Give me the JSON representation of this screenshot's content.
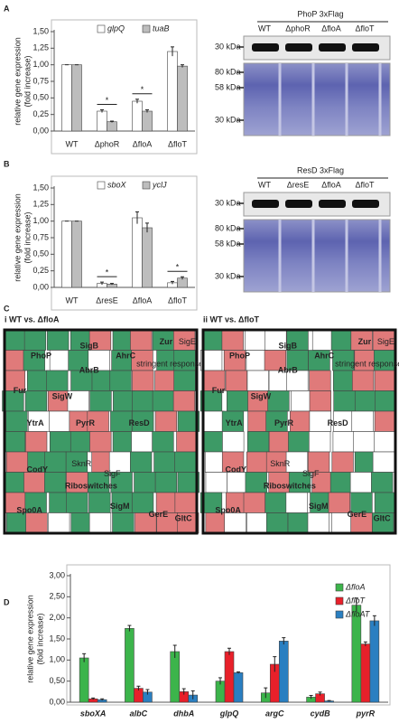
{
  "panel_labels": [
    "A",
    "B",
    "C",
    "D"
  ],
  "chart_data": [
    {
      "type": "bar",
      "y_label": [
        "relative gene expression",
        "(fold increase)"
      ],
      "categories": [
        "WT",
        "ΔphoR",
        "ΔfloA",
        "ΔfloT"
      ],
      "series": [
        {
          "name": "glpQ",
          "color": "#ffffff",
          "values": [
            1,
            0.3,
            0.45,
            1.2
          ],
          "errors": [
            0,
            0.02,
            0.03,
            0.07
          ]
        },
        {
          "name": "tuaB",
          "color": "#bdbdbd",
          "values": [
            1,
            0.14,
            0.3,
            0.98
          ],
          "errors": [
            0,
            0.01,
            0.02,
            0.02
          ]
        }
      ],
      "significance": [
        null,
        "*",
        "*",
        null
      ],
      "ylim": [
        0,
        1.5
      ],
      "yticks": [
        {
          "value": 0,
          "label": "0,00"
        },
        {
          "value": 0.25,
          "label": "0,25"
        },
        {
          "value": 0.5,
          "label": "0,50"
        },
        {
          "value": 0.75,
          "label": "0,75"
        },
        {
          "value": 1,
          "label": "1,00"
        },
        {
          "value": 1.25,
          "label": "1,25"
        },
        {
          "value": 1.5,
          "label": "1,50"
        }
      ]
    },
    {
      "type": "bar",
      "y_label": [
        "relative gene expression",
        "(fold increase)"
      ],
      "categories": [
        "WT",
        "ΔresE",
        "ΔfloA",
        "ΔfloT"
      ],
      "series": [
        {
          "name": "sboX",
          "color": "#ffffff",
          "values": [
            1,
            0.06,
            1.05,
            0.07
          ],
          "errors": [
            0,
            0.02,
            0.09,
            0.02
          ]
        },
        {
          "name": "yclJ",
          "color": "#bdbdbd",
          "values": [
            1,
            0.05,
            0.9,
            0.14
          ],
          "errors": [
            0,
            0.01,
            0.07,
            0.02
          ]
        }
      ],
      "significance": [
        null,
        "*",
        null,
        "*"
      ],
      "ylim": [
        0,
        1.5
      ],
      "yticks": [
        {
          "value": 0,
          "label": "0,00"
        },
        {
          "value": 0.25,
          "label": "0,25"
        },
        {
          "value": 0.5,
          "label": "0,50"
        },
        {
          "value": 0.75,
          "label": "0,75"
        },
        {
          "value": 1,
          "label": "1,00"
        },
        {
          "value": 1.25,
          "label": "1,25"
        },
        {
          "value": 1.5,
          "label": "1,50"
        }
      ]
    },
    {
      "type": "bar",
      "y_label": [
        "relative gene expression",
        "(fold increase)"
      ],
      "categories": [
        "sboXA",
        "albC",
        "dhbA",
        "glpQ",
        "argC",
        "cydB",
        "pyrR"
      ],
      "series": [
        {
          "name": "ΔfloA",
          "color": "#3cb44b",
          "values": [
            1.05,
            1.75,
            1.2,
            0.5,
            0.22,
            0.12,
            2.3
          ],
          "errors": [
            0.1,
            0.07,
            0.15,
            0.08,
            0.12,
            0.04,
            0.17
          ]
        },
        {
          "name": "ΔfloT",
          "color": "#e8202a",
          "values": [
            0.08,
            0.33,
            0.25,
            1.2,
            0.9,
            0.2,
            1.38
          ],
          "errors": [
            0.02,
            0.05,
            0.07,
            0.08,
            0.18,
            0.04,
            0.05
          ]
        },
        {
          "name": "ΔfloAT",
          "color": "#2a7fc1",
          "values": [
            0.06,
            0.24,
            0.17,
            0.7,
            1.45,
            0.03,
            1.93
          ],
          "errors": [
            0.02,
            0.06,
            0.1,
            0.02,
            0.08,
            0.01,
            0.12
          ]
        }
      ],
      "ylim": [
        0,
        3
      ],
      "yticks": [
        {
          "value": 0,
          "label": "0,00"
        },
        {
          "value": 0.5,
          "label": "0,50"
        },
        {
          "value": 1,
          "label": "1,00"
        },
        {
          "value": 1.5,
          "label": "1,50"
        },
        {
          "value": 2,
          "label": "2,00"
        },
        {
          "value": 2.5,
          "label": "2,50"
        },
        {
          "value": 3,
          "label": "3,00"
        }
      ]
    }
  ],
  "blots": [
    {
      "title": "PhoP 3xFlag",
      "lanes": [
        "WT",
        "ΔphoR",
        "ΔfloA",
        "ΔfloT"
      ],
      "top_marker": "30 kDa",
      "bottom_markers": [
        "80 kDa",
        "58 kDa",
        "30 kDa"
      ]
    },
    {
      "title": "ResD 3xFlag",
      "lanes": [
        "WT",
        "ΔresE",
        "ΔfloA",
        "ΔfloT"
      ],
      "top_marker": "30 kDa",
      "bottom_markers": [
        "80 kDa",
        "58 kDa",
        "30 kDa"
      ]
    }
  ],
  "treemaps": [
    {
      "title": "i WT vs. ΔfloA",
      "labels": [
        "PhoP",
        "SigB",
        "AhrC",
        "Zur",
        "SigE",
        "stringent response",
        "AbrB",
        "Fur",
        "SigW",
        "YtrA",
        "PyrR",
        "ResD",
        "CodY",
        "SknR",
        "SigF",
        "Riboswitches",
        "Spo0A",
        "SigM",
        "GerE",
        "GltC"
      ]
    },
    {
      "title": "ii WT vs. ΔfloT",
      "labels": [
        "PhoP",
        "SigB",
        "AhrC",
        "Zur",
        "SigE",
        "stringent response",
        "AbrB",
        "Fur",
        "SigW",
        "YtrA",
        "PyrR",
        "ResD",
        "CodY",
        "SknR",
        "SigF",
        "Riboswitches",
        "Spo0A",
        "SigM",
        "GerE",
        "GltC"
      ]
    }
  ]
}
